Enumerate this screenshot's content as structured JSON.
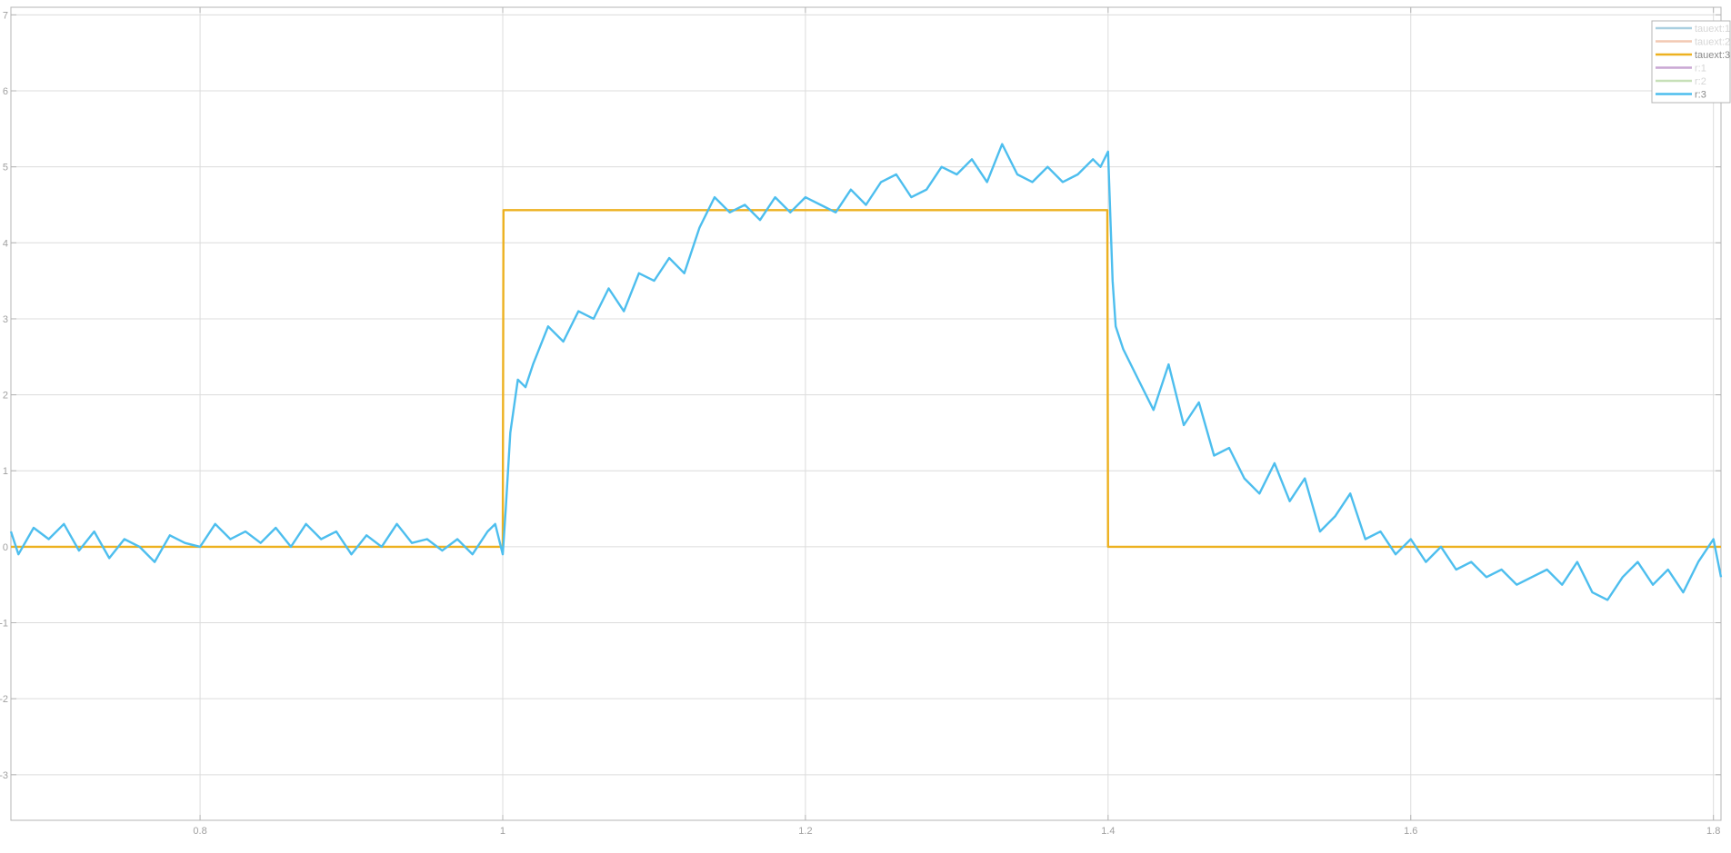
{
  "chart_data": {
    "type": "line",
    "title": "",
    "xlabel": "",
    "ylabel": "",
    "xlim": [
      0.675,
      1.805
    ],
    "ylim": [
      -3.6,
      7.1
    ],
    "grid": true,
    "legend_position": "top-right",
    "x_ticks": [
      {
        "value": 0.8,
        "label": "0.8"
      },
      {
        "value": 1.0,
        "label": "1"
      },
      {
        "value": 1.2,
        "label": "1.2"
      },
      {
        "value": 1.4,
        "label": "1.4"
      },
      {
        "value": 1.6,
        "label": "1.6"
      },
      {
        "value": 1.8,
        "label": "1.8"
      }
    ],
    "y_ticks": [
      {
        "value": -3,
        "label": "-3"
      },
      {
        "value": -2,
        "label": "-2"
      },
      {
        "value": -1,
        "label": "-1"
      },
      {
        "value": 0,
        "label": "0"
      },
      {
        "value": 1,
        "label": "1"
      },
      {
        "value": 2,
        "label": "2"
      },
      {
        "value": 3,
        "label": "3"
      },
      {
        "value": 4,
        "label": "4"
      },
      {
        "value": 5,
        "label": "5"
      },
      {
        "value": 6,
        "label": "6"
      },
      {
        "value": 7,
        "label": "7"
      }
    ],
    "series": [
      {
        "name": "tauext:1",
        "color": "#a9cfe0",
        "dimmed": true,
        "visible": false,
        "x": [],
        "y": []
      },
      {
        "name": "tauext:2",
        "color": "#f2c9b3",
        "dimmed": true,
        "visible": false,
        "x": [],
        "y": []
      },
      {
        "name": "tauext:3",
        "color": "#edb120",
        "dimmed": false,
        "visible": true,
        "x": [
          0.675,
          1.0,
          1.0005,
          1.3995,
          1.4,
          1.805
        ],
        "y": [
          0,
          0,
          4.43,
          4.43,
          0,
          0
        ]
      },
      {
        "name": "r:1",
        "color": "#c9a7d3",
        "dimmed": true,
        "visible": false,
        "x": [],
        "y": []
      },
      {
        "name": "r:2",
        "color": "#c7e0b8",
        "dimmed": true,
        "visible": false,
        "x": [],
        "y": []
      },
      {
        "name": "r:3",
        "color": "#4dbeee",
        "dimmed": false,
        "visible": true,
        "x": [
          0.675,
          0.68,
          0.69,
          0.7,
          0.71,
          0.72,
          0.73,
          0.74,
          0.75,
          0.76,
          0.77,
          0.78,
          0.79,
          0.8,
          0.81,
          0.82,
          0.83,
          0.84,
          0.85,
          0.86,
          0.87,
          0.88,
          0.89,
          0.9,
          0.91,
          0.92,
          0.93,
          0.94,
          0.95,
          0.96,
          0.97,
          0.98,
          0.99,
          0.995,
          1.0,
          1.002,
          1.005,
          1.01,
          1.015,
          1.02,
          1.03,
          1.04,
          1.05,
          1.06,
          1.07,
          1.08,
          1.09,
          1.1,
          1.11,
          1.12,
          1.13,
          1.14,
          1.15,
          1.16,
          1.17,
          1.18,
          1.19,
          1.2,
          1.21,
          1.22,
          1.23,
          1.24,
          1.25,
          1.26,
          1.27,
          1.28,
          1.29,
          1.3,
          1.31,
          1.32,
          1.33,
          1.34,
          1.35,
          1.36,
          1.37,
          1.38,
          1.39,
          1.395,
          1.4,
          1.403,
          1.405,
          1.41,
          1.42,
          1.43,
          1.44,
          1.45,
          1.46,
          1.47,
          1.48,
          1.49,
          1.5,
          1.51,
          1.52,
          1.53,
          1.54,
          1.55,
          1.56,
          1.57,
          1.58,
          1.59,
          1.6,
          1.61,
          1.62,
          1.63,
          1.64,
          1.65,
          1.66,
          1.67,
          1.68,
          1.69,
          1.7,
          1.71,
          1.72,
          1.73,
          1.74,
          1.75,
          1.76,
          1.77,
          1.78,
          1.79,
          1.8,
          1.805
        ],
        "y": [
          0.2,
          -0.1,
          0.25,
          0.1,
          0.3,
          -0.05,
          0.2,
          -0.15,
          0.1,
          0.0,
          -0.2,
          0.15,
          0.05,
          0.0,
          0.3,
          0.1,
          0.2,
          0.05,
          0.25,
          0.0,
          0.3,
          0.1,
          0.2,
          -0.1,
          0.15,
          0.0,
          0.3,
          0.05,
          0.1,
          -0.05,
          0.1,
          -0.1,
          0.2,
          0.3,
          -0.1,
          0.5,
          1.5,
          2.2,
          2.1,
          2.4,
          2.9,
          2.7,
          3.1,
          3.0,
          3.4,
          3.1,
          3.6,
          3.5,
          3.8,
          3.6,
          4.2,
          4.6,
          4.4,
          4.5,
          4.3,
          4.6,
          4.4,
          4.6,
          4.5,
          4.4,
          4.7,
          4.5,
          4.8,
          4.9,
          4.6,
          4.7,
          5.0,
          4.9,
          5.1,
          4.8,
          5.3,
          4.9,
          4.8,
          5.0,
          4.8,
          4.9,
          5.1,
          5.0,
          5.2,
          3.5,
          2.9,
          2.6,
          2.2,
          1.8,
          2.4,
          1.6,
          1.9,
          1.2,
          1.3,
          0.9,
          0.7,
          1.1,
          0.6,
          0.9,
          0.2,
          0.4,
          0.7,
          0.1,
          0.2,
          -0.1,
          0.1,
          -0.2,
          0.0,
          -0.3,
          -0.2,
          -0.4,
          -0.3,
          -0.5,
          -0.4,
          -0.3,
          -0.5,
          -0.2,
          -0.6,
          -0.7,
          -0.4,
          -0.2,
          -0.5,
          -0.3,
          -0.6,
          -0.2,
          0.1,
          -0.4
        ]
      }
    ]
  }
}
